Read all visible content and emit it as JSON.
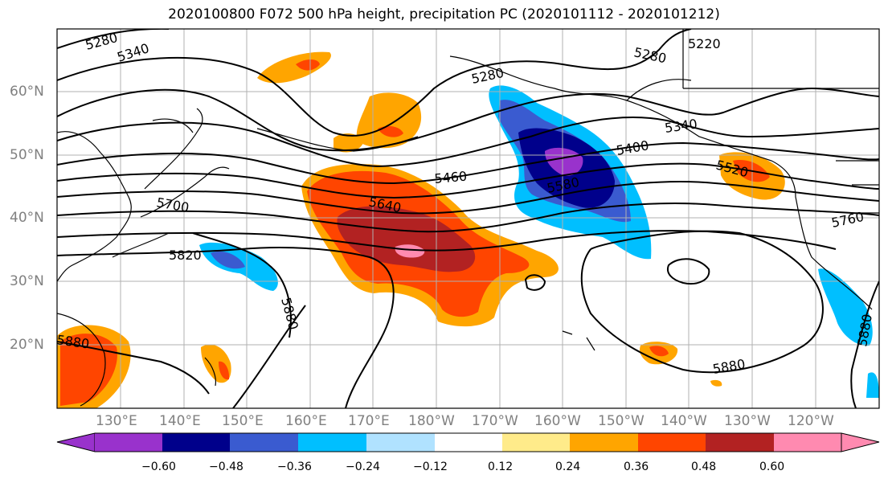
{
  "title": "2020100800 F072 500 hPa height, precipitation PC (2020101112 - 2020101212)",
  "lat_labels": [
    "60°N",
    "50°N",
    "40°N",
    "30°N",
    "20°N"
  ],
  "lon_labels": [
    "130°E",
    "140°E",
    "150°E",
    "160°E",
    "170°E",
    "180°W",
    "170°W",
    "160°W",
    "150°W",
    "140°W",
    "130°W",
    "120°W"
  ],
  "contour_labels": [
    "5280",
    "5340",
    "5220",
    "5280",
    "5280",
    "5340",
    "5400",
    "5460",
    "5520",
    "5580",
    "5640",
    "5700",
    "5760",
    "5820",
    "5880",
    "5880",
    "5880",
    "5880"
  ],
  "colorbar": {
    "colors": [
      "#9932cc",
      "#00008b",
      "#3a5bd0",
      "#00bfff",
      "#b0e2ff",
      "#ffffff",
      "#ffeb8a",
      "#ffa500",
      "#ff4500",
      "#b22222",
      "#ff8ab0"
    ],
    "labels": [
      "−0.60",
      "−0.48",
      "−0.36",
      "−0.24",
      "−0.12",
      "0.12",
      "0.24",
      "0.36",
      "0.48",
      "0.60"
    ]
  }
}
